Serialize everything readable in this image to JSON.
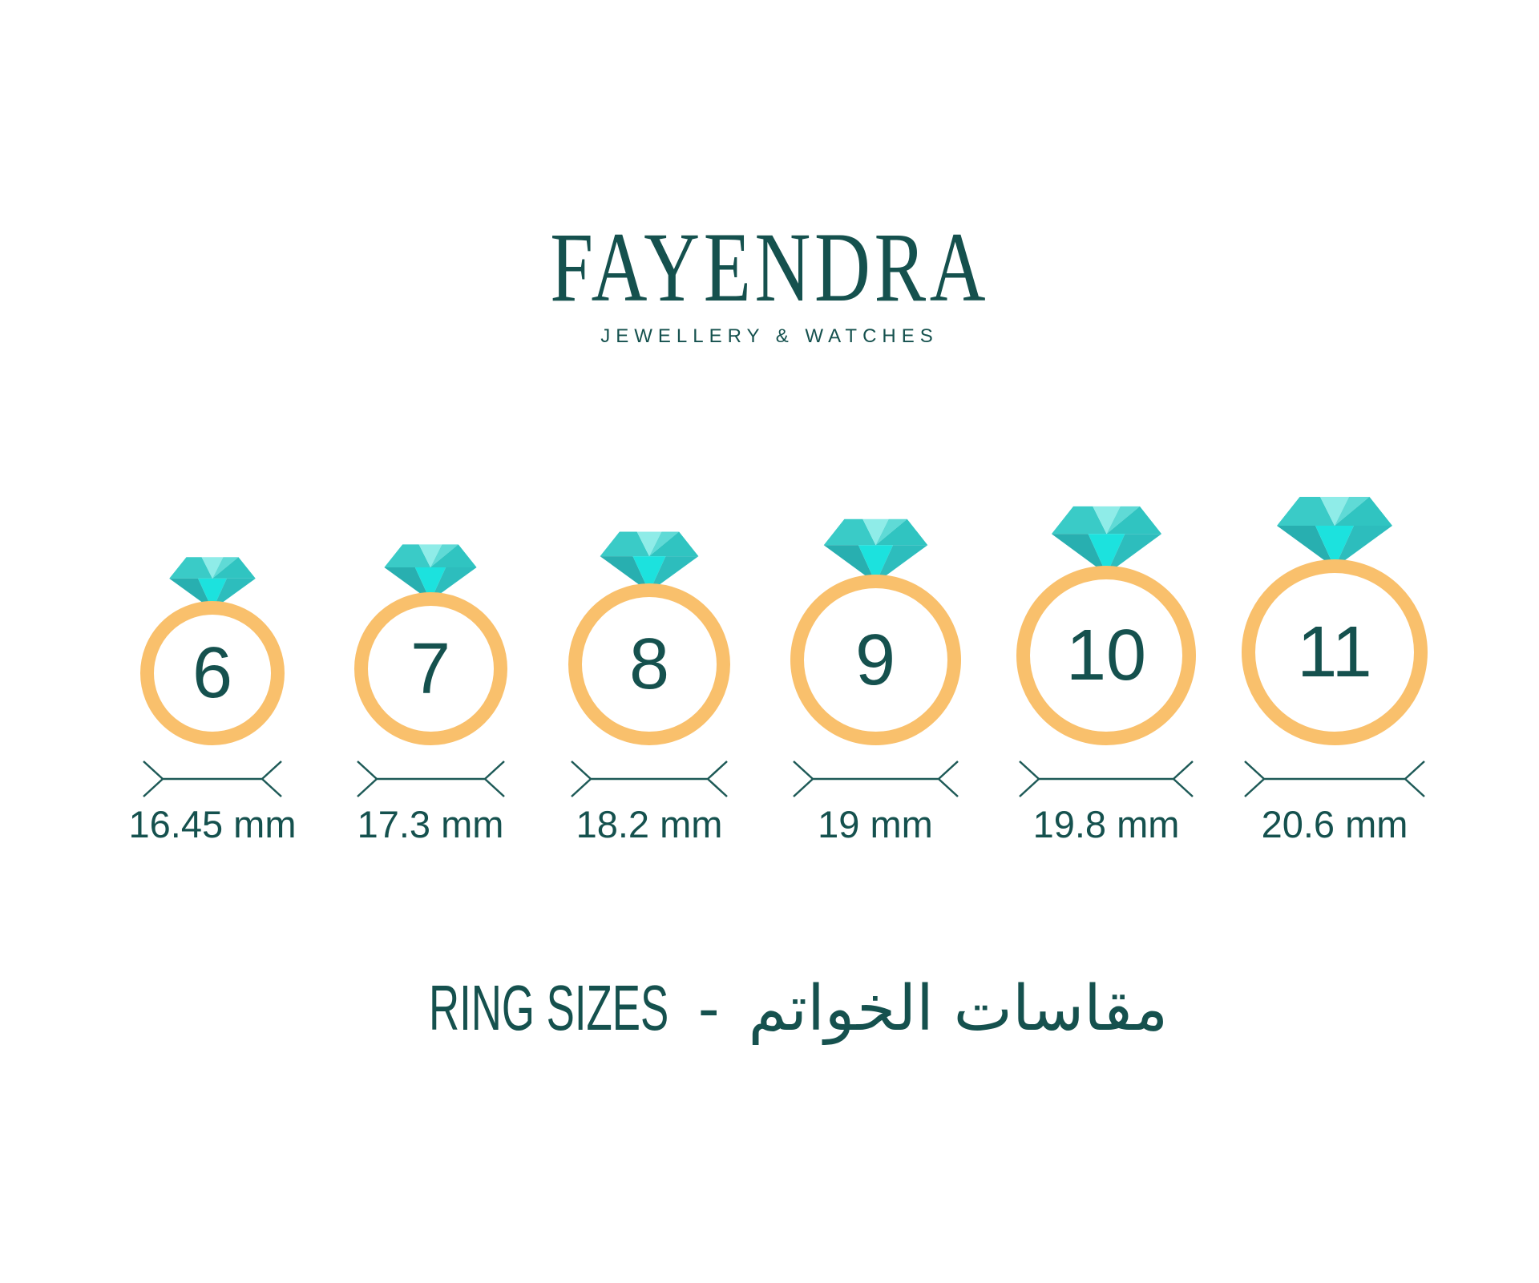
{
  "brand": {
    "name": "FAYENDRA",
    "tagline": "JEWELLERY & WATCHES"
  },
  "footer": {
    "title_en": "RING SIZES",
    "separator": "-",
    "title_ar": "مقاسات الخواتم"
  },
  "colors": {
    "text": "#15514E",
    "band": "#F9C06C",
    "dimension_line": "#1E5A57",
    "gem": {
      "top_left": "#3ACBC7",
      "top_center": "#8FECE8",
      "top_right": "#5FDAD6",
      "right_corner": "#30C4C1",
      "bottom_left": "#28AFB0",
      "bottom_center": "#1CE2DE",
      "bottom_right": "#2DBDBD"
    }
  },
  "rings": [
    {
      "size": "6",
      "diameter": "16.45 mm"
    },
    {
      "size": "7",
      "diameter": "17.3 mm"
    },
    {
      "size": "8",
      "diameter": "18.2 mm"
    },
    {
      "size": "9",
      "diameter": "19 mm"
    },
    {
      "size": "10",
      "diameter": "19.8 mm"
    },
    {
      "size": "11",
      "diameter": "20.6 mm"
    }
  ]
}
